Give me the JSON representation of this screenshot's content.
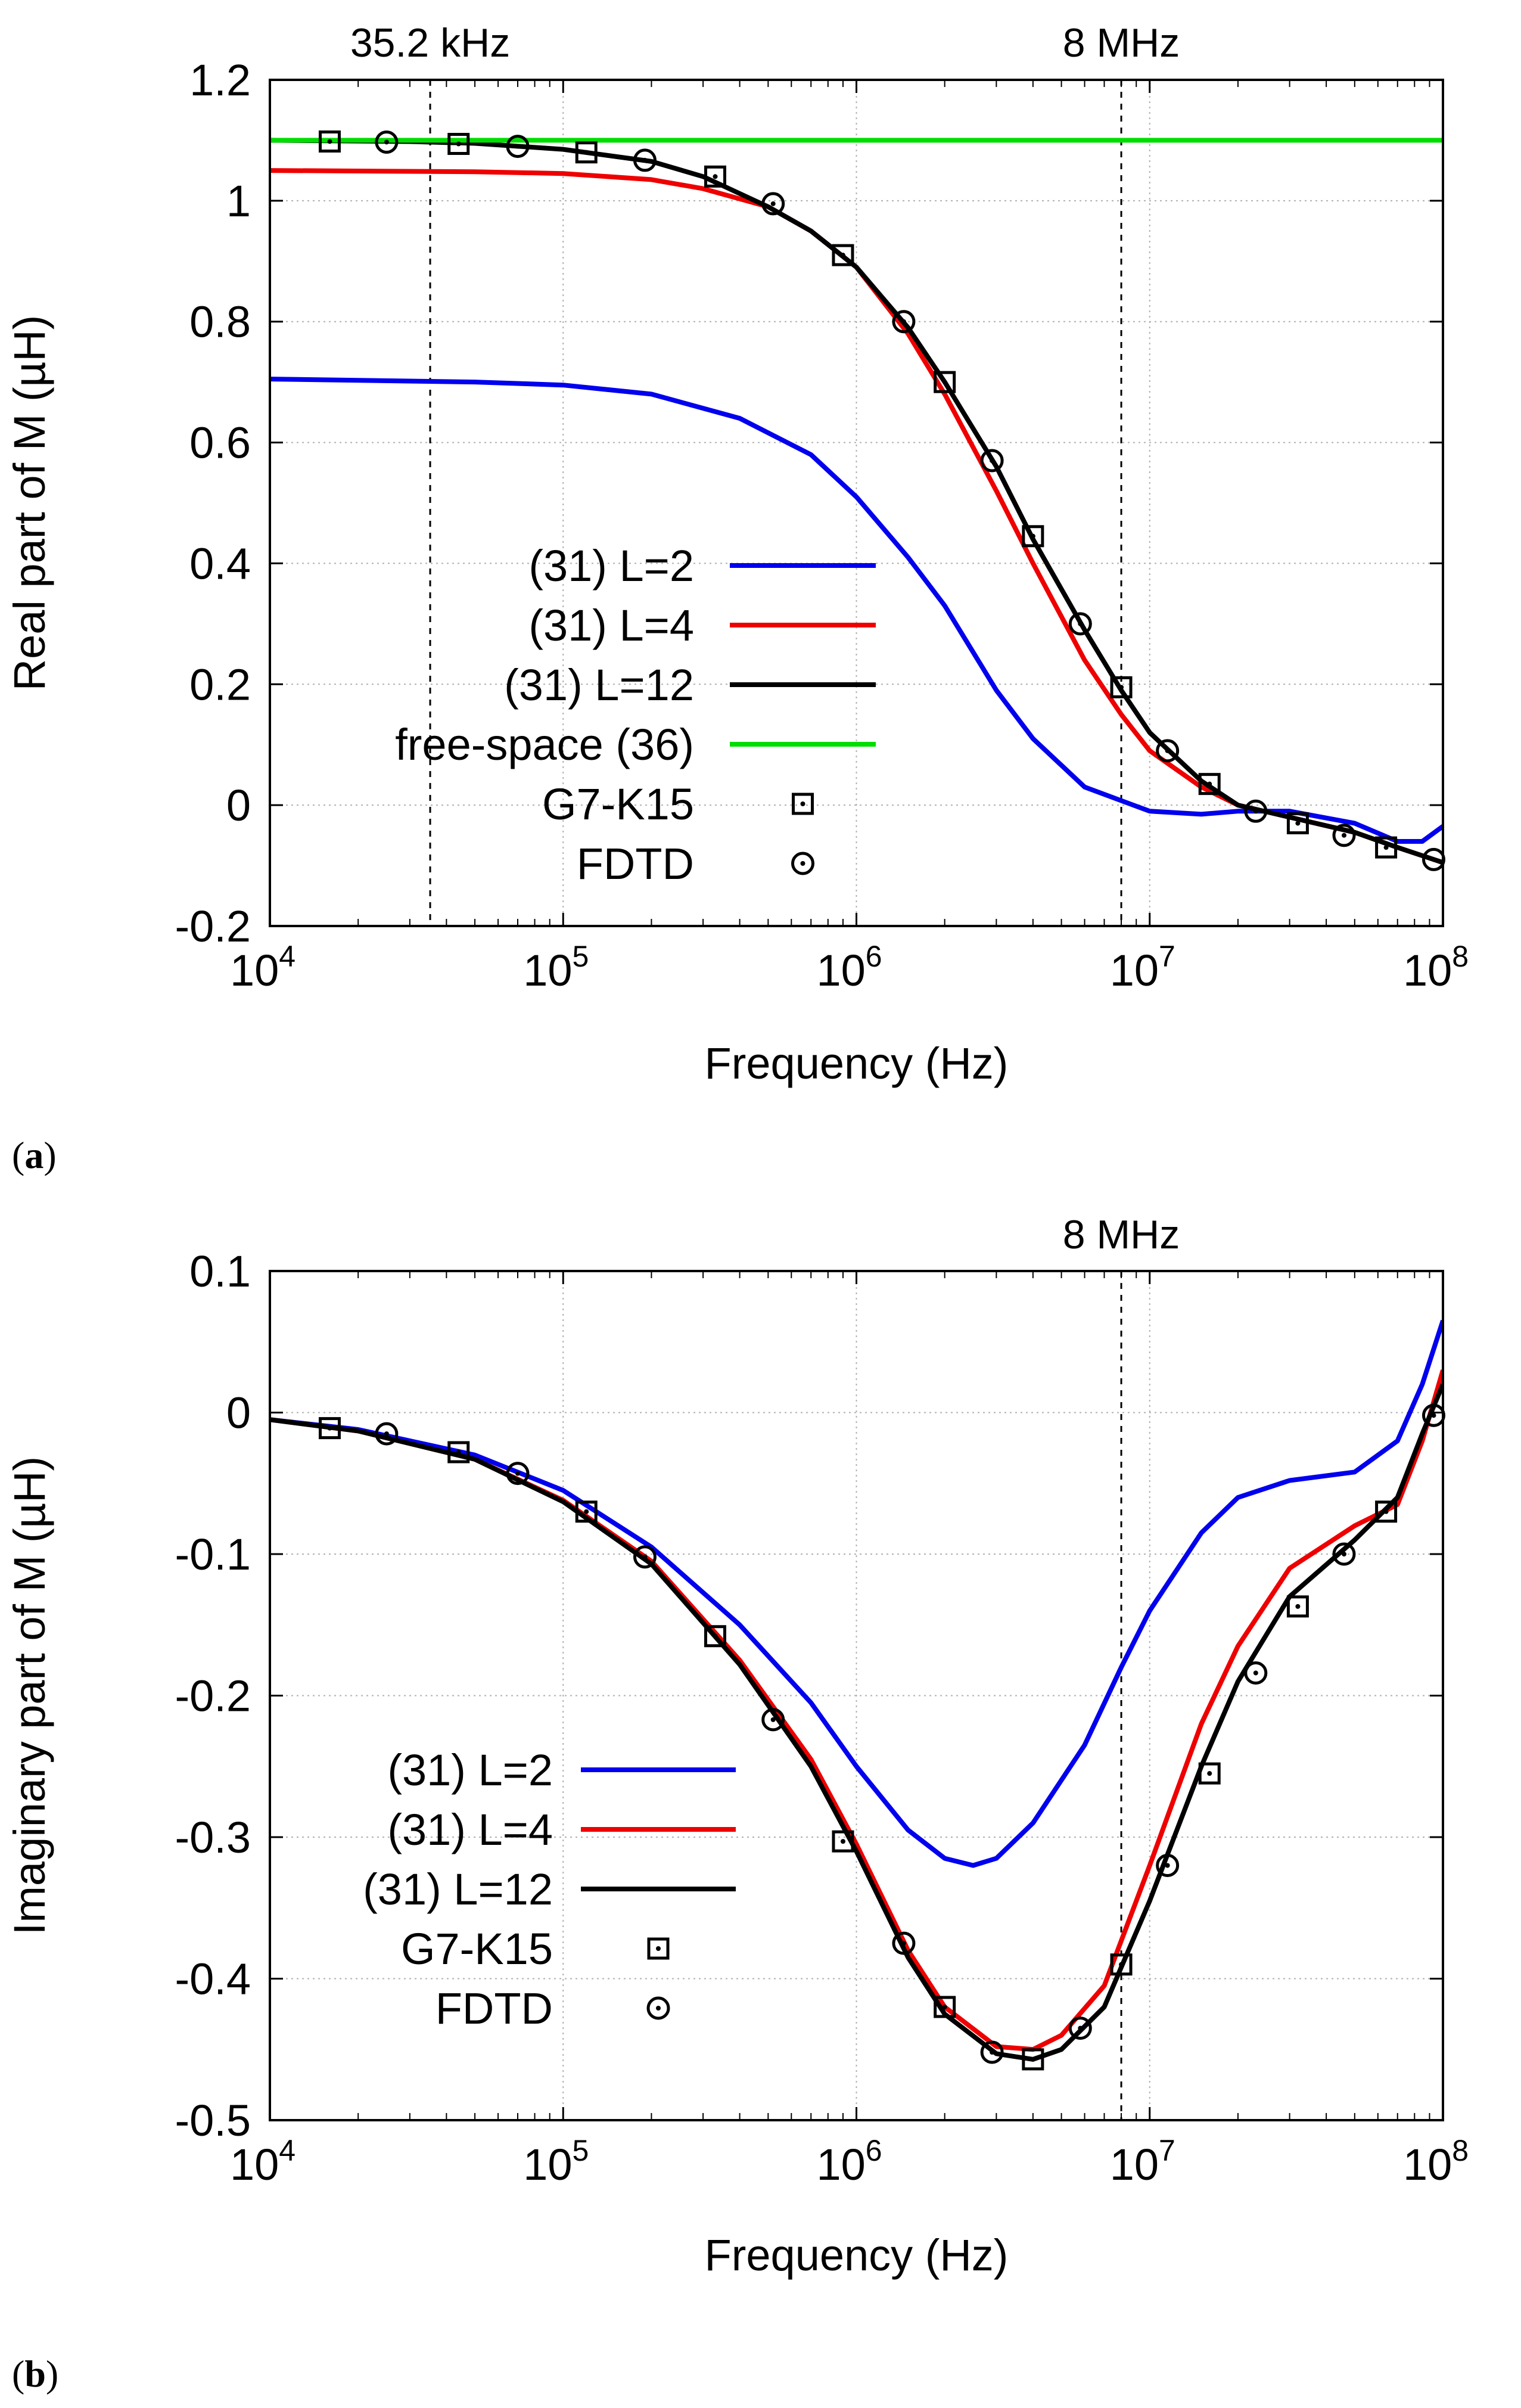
{
  "chart_data": [
    {
      "panel": "a",
      "type": "line",
      "xscale": "log",
      "xlim": [
        10000,
        100000000
      ],
      "ylim": [
        -0.2,
        1.2
      ],
      "xticks": [
        {
          "base": "10",
          "exp": "4",
          "value": 10000
        },
        {
          "base": "10",
          "exp": "5",
          "value": 100000
        },
        {
          "base": "10",
          "exp": "6",
          "value": 1000000
        },
        {
          "base": "10",
          "exp": "7",
          "value": 10000000
        },
        {
          "base": "10",
          "exp": "8",
          "value": 100000000
        }
      ],
      "yticks": [
        "-0.2",
        "0",
        "0.2",
        "0.4",
        "0.6",
        "0.8",
        "1",
        "1.2"
      ],
      "ytick_values": [
        -0.2,
        0,
        0.2,
        0.4,
        0.6,
        0.8,
        1.0,
        1.2
      ],
      "xlabel": "Frequency (Hz)",
      "ylabel": "Real part of M (µH)",
      "grid": true,
      "legend_position": "center-left",
      "vlines": [
        {
          "x": 35200,
          "label": "35.2 kHz"
        },
        {
          "x": 8000000,
          "label": "8 MHz"
        }
      ],
      "series": [
        {
          "name": "(31) L=2",
          "color": "#0000ee",
          "style": "line",
          "x": [
            10000,
            50000,
            100000,
            200000,
            400000,
            700000,
            1000000,
            1500000,
            2000000,
            3000000,
            4000000,
            6000000,
            10000000,
            15000000,
            20000000,
            30000000,
            50000000,
            70000000,
            85000000,
            100000000
          ],
          "y": [
            0.705,
            0.7,
            0.695,
            0.68,
            0.64,
            0.58,
            0.51,
            0.41,
            0.33,
            0.19,
            0.11,
            0.03,
            -0.01,
            -0.015,
            -0.01,
            -0.01,
            -0.03,
            -0.06,
            -0.06,
            -0.035
          ]
        },
        {
          "name": "(31) L=4",
          "color": "#ee0000",
          "style": "line",
          "x": [
            10000,
            50000,
            100000,
            200000,
            300000,
            500000,
            700000,
            1000000,
            1500000,
            2000000,
            3000000,
            4000000,
            6000000,
            8000000,
            10000000,
            15000000,
            20000000,
            30000000,
            50000000,
            70000000,
            100000000
          ],
          "y": [
            1.05,
            1.048,
            1.045,
            1.035,
            1.02,
            0.99,
            0.95,
            0.89,
            0.78,
            0.68,
            0.52,
            0.4,
            0.24,
            0.15,
            0.09,
            0.03,
            0.0,
            -0.02,
            -0.045,
            -0.07,
            -0.095
          ]
        },
        {
          "name": "(31) L=12",
          "color": "#000000",
          "style": "line",
          "x": [
            10000,
            30000,
            50000,
            100000,
            200000,
            300000,
            500000,
            700000,
            1000000,
            1500000,
            2000000,
            3000000,
            4000000,
            6000000,
            8000000,
            10000000,
            15000000,
            20000000,
            30000000,
            50000000,
            70000000,
            100000000
          ],
          "y": [
            1.1,
            1.098,
            1.095,
            1.085,
            1.065,
            1.04,
            0.99,
            0.95,
            0.89,
            0.79,
            0.7,
            0.56,
            0.44,
            0.29,
            0.19,
            0.12,
            0.04,
            0.0,
            -0.02,
            -0.045,
            -0.07,
            -0.095
          ]
        },
        {
          "name": "free-space (36)",
          "color": "#00dd00",
          "style": "line",
          "x": [
            10000,
            100000000
          ],
          "y": [
            1.1,
            1.1
          ]
        },
        {
          "name": "G7-K15",
          "color": "#000000",
          "style": "square-dot",
          "x": [
            16000,
            44000,
            120000,
            330000,
            900000,
            2000000,
            4000000,
            8000000,
            16000000,
            32000000,
            64000000
          ],
          "y": [
            1.098,
            1.094,
            1.08,
            1.04,
            0.91,
            0.7,
            0.445,
            0.195,
            0.035,
            -0.03,
            -0.07
          ]
        },
        {
          "name": "FDTD",
          "color": "#000000",
          "style": "circle-dot",
          "x": [
            25000,
            70000,
            190000,
            520000,
            1450000,
            2900000,
            5800000,
            11500000,
            23000000,
            46000000,
            93000000
          ],
          "y": [
            1.097,
            1.09,
            1.067,
            0.995,
            0.8,
            0.57,
            0.3,
            0.09,
            -0.01,
            -0.05,
            -0.09
          ]
        }
      ]
    },
    {
      "panel": "b",
      "type": "line",
      "xscale": "log",
      "xlim": [
        10000,
        100000000
      ],
      "ylim": [
        -0.5,
        0.1
      ],
      "xticks": [
        {
          "base": "10",
          "exp": "4",
          "value": 10000
        },
        {
          "base": "10",
          "exp": "5",
          "value": 100000
        },
        {
          "base": "10",
          "exp": "6",
          "value": 1000000
        },
        {
          "base": "10",
          "exp": "7",
          "value": 10000000
        },
        {
          "base": "10",
          "exp": "8",
          "value": 100000000
        }
      ],
      "yticks": [
        "-0.5",
        "-0.4",
        "-0.3",
        "-0.2",
        "-0.1",
        "0",
        "0.1"
      ],
      "ytick_values": [
        -0.5,
        -0.4,
        -0.3,
        -0.2,
        -0.1,
        0,
        0.1
      ],
      "xlabel": "Frequency (Hz)",
      "ylabel": "Imaginary part of M (µH)",
      "grid": true,
      "legend_position": "bottom-left",
      "vlines": [
        {
          "x": 8000000,
          "label": "8 MHz"
        }
      ],
      "series": [
        {
          "name": "(31) L=2",
          "color": "#0000ee",
          "style": "line",
          "x": [
            10000,
            20000,
            50000,
            100000,
            200000,
            400000,
            700000,
            1000000,
            1500000,
            2000000,
            2500000,
            3000000,
            4000000,
            6000000,
            8000000,
            10000000,
            15000000,
            20000000,
            30000000,
            50000000,
            70000000,
            85000000,
            100000000
          ],
          "y": [
            -0.005,
            -0.012,
            -0.03,
            -0.055,
            -0.095,
            -0.15,
            -0.205,
            -0.25,
            -0.295,
            -0.315,
            -0.32,
            -0.315,
            -0.29,
            -0.235,
            -0.18,
            -0.14,
            -0.085,
            -0.06,
            -0.048,
            -0.042,
            -0.02,
            0.02,
            0.065
          ]
        },
        {
          "name": "(31) L=4",
          "color": "#ee0000",
          "style": "line",
          "x": [
            10000,
            20000,
            50000,
            100000,
            200000,
            400000,
            700000,
            1000000,
            1500000,
            2000000,
            3000000,
            4000000,
            5000000,
            7000000,
            10000000,
            15000000,
            20000000,
            30000000,
            50000000,
            70000000,
            85000000,
            100000000
          ],
          "y": [
            -0.005,
            -0.013,
            -0.033,
            -0.062,
            -0.105,
            -0.175,
            -0.245,
            -0.305,
            -0.38,
            -0.42,
            -0.448,
            -0.45,
            -0.44,
            -0.405,
            -0.32,
            -0.22,
            -0.165,
            -0.11,
            -0.08,
            -0.065,
            -0.02,
            0.03
          ]
        },
        {
          "name": "(31) L=12",
          "color": "#000000",
          "style": "line",
          "x": [
            10000,
            20000,
            50000,
            100000,
            200000,
            400000,
            700000,
            1000000,
            1500000,
            2000000,
            3000000,
            4000000,
            5000000,
            7000000,
            10000000,
            15000000,
            20000000,
            30000000,
            50000000,
            70000000,
            85000000,
            100000000
          ],
          "y": [
            -0.005,
            -0.013,
            -0.033,
            -0.063,
            -0.107,
            -0.178,
            -0.25,
            -0.31,
            -0.385,
            -0.425,
            -0.453,
            -0.457,
            -0.45,
            -0.42,
            -0.345,
            -0.25,
            -0.19,
            -0.13,
            -0.09,
            -0.06,
            -0.015,
            0.02
          ]
        },
        {
          "name": "G7-K15",
          "color": "#000000",
          "style": "square-dot",
          "x": [
            16000,
            44000,
            120000,
            330000,
            900000,
            2000000,
            4000000,
            8000000,
            16000000,
            32000000,
            64000000
          ],
          "y": [
            -0.011,
            -0.028,
            -0.07,
            -0.158,
            -0.303,
            -0.42,
            -0.457,
            -0.39,
            -0.255,
            -0.137,
            -0.07
          ]
        },
        {
          "name": "FDTD",
          "color": "#000000",
          "style": "circle-dot",
          "x": [
            25000,
            70000,
            190000,
            520000,
            1450000,
            2900000,
            5800000,
            11500000,
            23000000,
            46000000,
            93000000
          ],
          "y": [
            -0.015,
            -0.043,
            -0.102,
            -0.217,
            -0.375,
            -0.452,
            -0.435,
            -0.32,
            -0.184,
            -0.1,
            -0.002
          ]
        }
      ]
    }
  ],
  "panel_labels": {
    "a": "a",
    "b": "b"
  },
  "paren_open": "(",
  "paren_close": ")"
}
